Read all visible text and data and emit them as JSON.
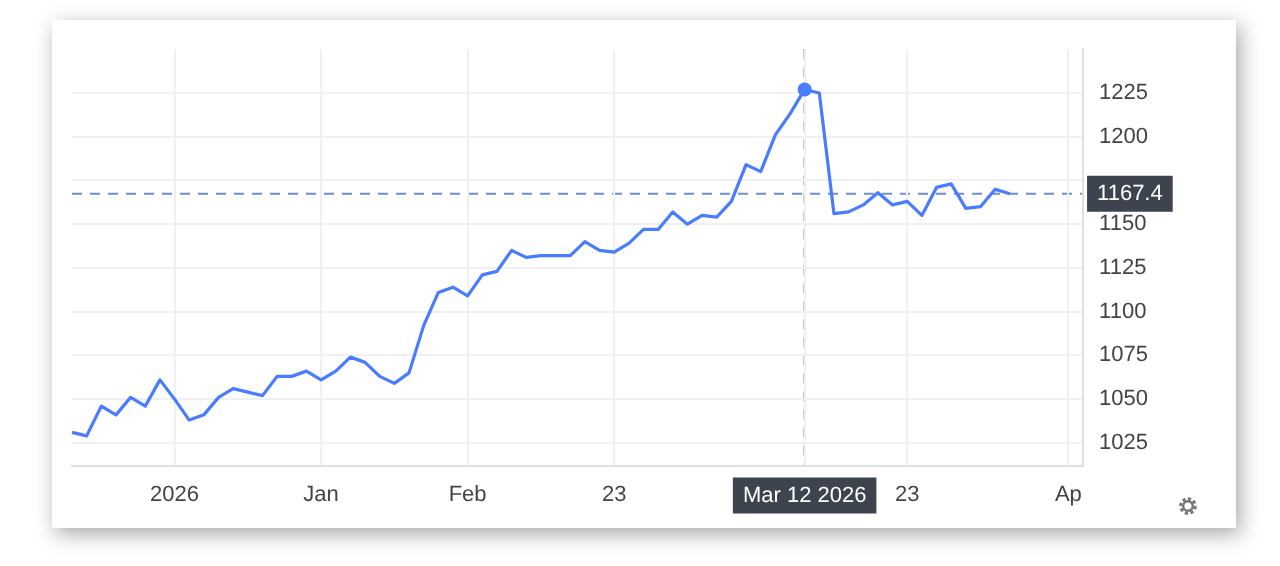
{
  "chart_data": {
    "type": "line",
    "categories": [
      null,
      null,
      null,
      null,
      null,
      null,
      null,
      "2026",
      null,
      null,
      null,
      null,
      null,
      null,
      null,
      null,
      null,
      "Jan",
      null,
      null,
      null,
      null,
      null,
      null,
      null,
      null,
      null,
      "Feb",
      null,
      null,
      null,
      null,
      null,
      null,
      null,
      null,
      null,
      "23",
      null,
      null,
      null,
      null,
      null,
      null,
      null,
      null,
      null,
      null,
      null,
      null,
      "Mar 12 2026",
      null,
      null,
      null,
      null,
      null,
      null,
      "23",
      null,
      null,
      null,
      null,
      null,
      null,
      null,
      null,
      null,
      null,
      "Ap",
      null
    ],
    "series": [
      {
        "color": "#4a7cff",
        "values": [
          1031,
          1029,
          1046,
          1041,
          1051,
          1046,
          1061,
          1050,
          1038,
          1041,
          1051,
          1056,
          1054,
          1052,
          1063,
          1063,
          1066,
          1061,
          1066,
          1074,
          1071,
          1063,
          1059,
          1065,
          1092,
          1111,
          1114,
          1109,
          1121,
          1123,
          1135,
          1131,
          1132,
          1132,
          1132,
          1140,
          1135,
          1134,
          1139,
          1147,
          1147,
          1157,
          1150,
          1155,
          1154,
          1163,
          1184,
          1180,
          1201,
          1213,
          1227,
          1225,
          1156,
          1157,
          1161,
          1168,
          1161,
          1163,
          1155,
          1171,
          1173,
          1159,
          1160,
          1170,
          1167.4,
          null,
          null,
          null,
          null,
          null
        ]
      }
    ],
    "ylim": [
      1012,
      1250
    ],
    "yticks": [
      1025,
      1050,
      1075,
      1100,
      1125,
      1150,
      {
        "value": 1175,
        "label": null
      },
      1200,
      1225
    ],
    "grid": true,
    "legend": false,
    "marker": "none",
    "line_style": "solid",
    "ref_lines": [
      {
        "axis": "y",
        "value": 1167.4,
        "label": "1167.4",
        "color": "#6f8fd0",
        "line_style": "dashed"
      },
      {
        "axis": "x",
        "value": "Mar 12 2026",
        "color": "#666666",
        "line_style": "dashed"
      }
    ]
  }
}
